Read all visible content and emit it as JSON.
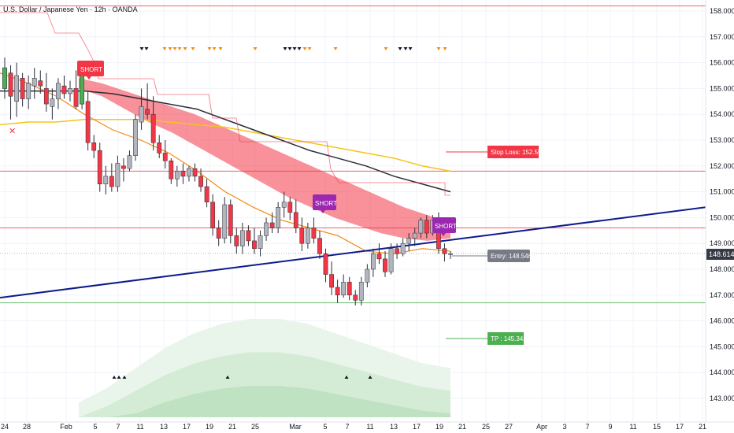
{
  "header": {
    "title": "U.S. Dollar / Japanese Yen · 12h · OANDA"
  },
  "price_axis": {
    "ticks": [
      "158.000",
      "157.000",
      "156.000",
      "155.000",
      "154.000",
      "153.000",
      "152.000",
      "151.000",
      "150.000",
      "149.000",
      "148.000",
      "147.000",
      "146.000",
      "145.000",
      "144.000",
      "143.000"
    ],
    "current_price": "148.614",
    "current_price_color": "#363a45"
  },
  "time_axis": {
    "ticks": [
      "24",
      "28",
      "Feb",
      "5",
      "7",
      "11",
      "13",
      "17",
      "19",
      "21",
      "25",
      "Mar",
      "5",
      "7",
      "11",
      "13",
      "17",
      "19",
      "21",
      "25",
      "27",
      "Apr",
      "3",
      "7",
      "9",
      "11",
      "15",
      "17",
      "21"
    ]
  },
  "colors": {
    "up_candle": "#b2b5be",
    "down_candle": "#f23645",
    "trend_line": "#0d1a8c",
    "cloud": "#f23645",
    "sma_dark": "#2a2e39",
    "sma_gold": "#f5c518",
    "ema_orange": "#f28c15",
    "stop_color": "#f23645",
    "tp_color": "#4caf50",
    "short_color_red": "#f23645",
    "short_color_purple": "#9c27b0",
    "entry_color": "#787b86"
  },
  "labels": {
    "short_1": "SHORT",
    "short_2": "SHORT",
    "short_3": "SHORT",
    "stop_loss": "Stop Loss: 152.551",
    "entry": "Entry: 148.546",
    "take_profit": "TP : 145.342",
    "cross_marker": "✕"
  },
  "chart_data": {
    "type": "candlestick",
    "title": "U.S. Dollar / Japanese Yen · 12h · OANDA",
    "y_range": [
      142.8,
      158.3
    ],
    "horizontal_levels": [
      {
        "name": "",
        "value": 158.2,
        "color": "#f23645"
      },
      {
        "name": "",
        "value": 151.8,
        "color": "#f23645"
      },
      {
        "name": "",
        "value": 149.6,
        "color": "#f23645"
      },
      {
        "name": "",
        "value": 146.7,
        "color": "#4caf50"
      }
    ],
    "trade": {
      "stop_loss": 152.551,
      "entry": 148.546,
      "take_profit": 145.342
    },
    "last_price": 148.614,
    "candles": [
      {
        "o": 155.0,
        "h": 156.2,
        "l": 154.6,
        "c": 155.8
      },
      {
        "o": 155.6,
        "h": 155.9,
        "l": 153.8,
        "c": 154.7
      },
      {
        "o": 154.5,
        "h": 156.0,
        "l": 153.9,
        "c": 155.5
      },
      {
        "o": 155.4,
        "h": 155.6,
        "l": 154.3,
        "c": 154.6
      },
      {
        "o": 154.6,
        "h": 155.5,
        "l": 154.2,
        "c": 155.2
      },
      {
        "o": 155.1,
        "h": 155.8,
        "l": 154.6,
        "c": 155.4
      },
      {
        "o": 155.3,
        "h": 155.7,
        "l": 154.8,
        "c": 155.1
      },
      {
        "o": 155.0,
        "h": 155.6,
        "l": 154.1,
        "c": 154.4
      },
      {
        "o": 154.3,
        "h": 155.0,
        "l": 153.8,
        "c": 154.6
      },
      {
        "o": 154.6,
        "h": 155.4,
        "l": 154.2,
        "c": 155.2
      },
      {
        "o": 155.1,
        "h": 155.5,
        "l": 154.6,
        "c": 154.8
      },
      {
        "o": 154.8,
        "h": 155.3,
        "l": 154.5,
        "c": 155.0
      },
      {
        "o": 155.0,
        "h": 155.7,
        "l": 154.2,
        "c": 154.3
      },
      {
        "o": 154.4,
        "h": 155.8,
        "l": 154.2,
        "c": 155.6
      },
      {
        "o": 154.5,
        "h": 154.9,
        "l": 152.6,
        "c": 152.9
      },
      {
        "o": 152.9,
        "h": 153.2,
        "l": 152.3,
        "c": 152.6
      },
      {
        "o": 152.6,
        "h": 152.9,
        "l": 151.0,
        "c": 151.3
      },
      {
        "o": 151.3,
        "h": 152.0,
        "l": 150.9,
        "c": 151.6
      },
      {
        "o": 151.6,
        "h": 152.1,
        "l": 151.0,
        "c": 151.2
      },
      {
        "o": 151.2,
        "h": 152.4,
        "l": 151.0,
        "c": 152.1
      },
      {
        "o": 152.0,
        "h": 152.3,
        "l": 151.4,
        "c": 151.9
      },
      {
        "o": 151.9,
        "h": 152.6,
        "l": 151.8,
        "c": 152.4
      },
      {
        "o": 152.4,
        "h": 154.0,
        "l": 152.2,
        "c": 153.8
      },
      {
        "o": 153.7,
        "h": 155.0,
        "l": 153.4,
        "c": 154.3
      },
      {
        "o": 154.2,
        "h": 155.2,
        "l": 153.8,
        "c": 154.0
      },
      {
        "o": 154.0,
        "h": 154.7,
        "l": 152.6,
        "c": 152.9
      },
      {
        "o": 152.9,
        "h": 153.2,
        "l": 152.3,
        "c": 152.5
      },
      {
        "o": 152.5,
        "h": 153.0,
        "l": 151.9,
        "c": 152.2
      },
      {
        "o": 152.2,
        "h": 152.3,
        "l": 151.3,
        "c": 151.5
      },
      {
        "o": 151.5,
        "h": 152.0,
        "l": 151.2,
        "c": 151.8
      },
      {
        "o": 151.8,
        "h": 152.1,
        "l": 151.3,
        "c": 151.6
      },
      {
        "o": 151.6,
        "h": 152.0,
        "l": 151.4,
        "c": 151.9
      },
      {
        "o": 151.9,
        "h": 152.1,
        "l": 151.4,
        "c": 151.6
      },
      {
        "o": 151.6,
        "h": 151.9,
        "l": 151.0,
        "c": 151.2
      },
      {
        "o": 151.2,
        "h": 151.5,
        "l": 150.4,
        "c": 150.6
      },
      {
        "o": 150.6,
        "h": 150.9,
        "l": 149.3,
        "c": 149.6
      },
      {
        "o": 149.6,
        "h": 149.9,
        "l": 148.9,
        "c": 149.2
      },
      {
        "o": 149.2,
        "h": 150.8,
        "l": 149.0,
        "c": 150.5
      },
      {
        "o": 150.5,
        "h": 150.7,
        "l": 149.0,
        "c": 149.3
      },
      {
        "o": 149.3,
        "h": 149.6,
        "l": 148.6,
        "c": 148.9
      },
      {
        "o": 148.9,
        "h": 149.8,
        "l": 148.6,
        "c": 149.5
      },
      {
        "o": 149.5,
        "h": 149.7,
        "l": 148.9,
        "c": 149.1
      },
      {
        "o": 149.1,
        "h": 149.6,
        "l": 148.6,
        "c": 148.8
      },
      {
        "o": 148.8,
        "h": 149.5,
        "l": 148.5,
        "c": 149.3
      },
      {
        "o": 149.3,
        "h": 150.0,
        "l": 149.1,
        "c": 149.8
      },
      {
        "o": 149.8,
        "h": 150.2,
        "l": 149.4,
        "c": 149.6
      },
      {
        "o": 149.6,
        "h": 150.6,
        "l": 149.4,
        "c": 150.4
      },
      {
        "o": 150.4,
        "h": 151.0,
        "l": 150.0,
        "c": 150.6
      },
      {
        "o": 150.6,
        "h": 150.8,
        "l": 149.9,
        "c": 150.2
      },
      {
        "o": 150.2,
        "h": 150.7,
        "l": 149.4,
        "c": 149.6
      },
      {
        "o": 149.6,
        "h": 150.0,
        "l": 148.7,
        "c": 149.0
      },
      {
        "o": 149.0,
        "h": 149.8,
        "l": 148.8,
        "c": 149.6
      },
      {
        "o": 149.6,
        "h": 150.0,
        "l": 149.0,
        "c": 149.2
      },
      {
        "o": 149.2,
        "h": 149.5,
        "l": 148.4,
        "c": 148.6
      },
      {
        "o": 148.6,
        "h": 148.8,
        "l": 147.5,
        "c": 147.8
      },
      {
        "o": 147.8,
        "h": 148.3,
        "l": 147.0,
        "c": 147.3
      },
      {
        "o": 147.3,
        "h": 147.6,
        "l": 146.7,
        "c": 147.0
      },
      {
        "o": 147.0,
        "h": 147.8,
        "l": 146.9,
        "c": 147.5
      },
      {
        "o": 147.5,
        "h": 147.7,
        "l": 146.8,
        "c": 147.0
      },
      {
        "o": 147.0,
        "h": 147.2,
        "l": 146.6,
        "c": 146.8
      },
      {
        "o": 146.8,
        "h": 147.7,
        "l": 146.6,
        "c": 147.5
      },
      {
        "o": 147.5,
        "h": 148.2,
        "l": 147.3,
        "c": 148.0
      },
      {
        "o": 148.0,
        "h": 148.8,
        "l": 147.7,
        "c": 148.6
      },
      {
        "o": 148.6,
        "h": 149.0,
        "l": 148.2,
        "c": 148.4
      },
      {
        "o": 148.4,
        "h": 148.7,
        "l": 147.7,
        "c": 147.9
      },
      {
        "o": 147.9,
        "h": 149.0,
        "l": 147.8,
        "c": 148.8
      },
      {
        "o": 148.8,
        "h": 149.0,
        "l": 148.4,
        "c": 148.6
      },
      {
        "o": 148.6,
        "h": 149.2,
        "l": 148.5,
        "c": 149.0
      },
      {
        "o": 149.0,
        "h": 149.4,
        "l": 148.7,
        "c": 149.2
      },
      {
        "o": 149.2,
        "h": 149.6,
        "l": 148.9,
        "c": 149.4
      },
      {
        "o": 149.4,
        "h": 150.0,
        "l": 149.2,
        "c": 149.9
      },
      {
        "o": 149.9,
        "h": 150.1,
        "l": 149.2,
        "c": 149.4
      },
      {
        "o": 149.4,
        "h": 150.1,
        "l": 149.3,
        "c": 149.9
      },
      {
        "o": 149.9,
        "h": 150.2,
        "l": 148.6,
        "c": 148.8
      },
      {
        "o": 148.8,
        "h": 149.0,
        "l": 148.3,
        "c": 148.6
      },
      {
        "o": 148.6,
        "h": 148.7,
        "l": 148.4,
        "c": 148.6
      }
    ],
    "cloud": {
      "upper": [
        155.4,
        155.2,
        154.9,
        154.6,
        154.3,
        154.0,
        153.6,
        153.2,
        152.8,
        152.4,
        152.0,
        151.6,
        151.2,
        150.8,
        150.4,
        150.1,
        149.8
      ],
      "lower": [
        155.0,
        154.7,
        154.2,
        153.7,
        153.3,
        152.8,
        152.3,
        151.8,
        151.3,
        150.8,
        150.4,
        150.0,
        149.7,
        149.4,
        149.2,
        149.1,
        149.2
      ]
    },
    "sma_dark": [
      154.9,
      154.9,
      154.9,
      154.9,
      154.8,
      154.6,
      154.4,
      154.2,
      153.8,
      153.4,
      153.0,
      152.6,
      152.3,
      152.0,
      151.6,
      151.3,
      151.0
    ],
    "sma_gold": [
      153.6,
      153.7,
      153.7,
      153.8,
      153.8,
      153.8,
      153.7,
      153.6,
      153.5,
      153.3,
      153.1,
      152.9,
      152.7,
      152.5,
      152.3,
      152.0,
      151.8
    ],
    "ema_orange": [
      155.6,
      155.2,
      154.7,
      154.0,
      153.4,
      153.0,
      152.5,
      151.8,
      151.0,
      150.4,
      149.9,
      149.6,
      149.3,
      148.7,
      148.6,
      148.8,
      148.7
    ],
    "trend_line": {
      "start": 146.9,
      "end": 150.4
    },
    "volume_profile": [
      0.15,
      0.3,
      0.5,
      0.7,
      0.85,
      0.95,
      1.0,
      1.0,
      0.95,
      0.85,
      0.75,
      0.65,
      0.55,
      0.5
    ],
    "arrows_down_black_x_index": [
      27,
      28,
      44,
      45,
      46,
      47,
      62,
      63,
      64
    ],
    "arrows_down_orange_x_index": [
      32,
      33,
      34,
      35,
      36,
      38,
      40,
      41,
      48,
      49,
      51,
      57,
      68,
      69
    ],
    "arrows_up_x_index": [
      23,
      24,
      25,
      37,
      55,
      59
    ]
  }
}
